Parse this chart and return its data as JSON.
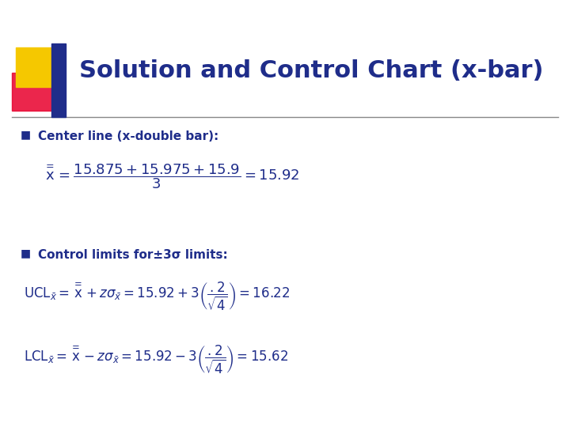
{
  "title": "Solution and Control Chart (x-bar)",
  "title_color": "#1F2D8A",
  "title_fontsize": 22,
  "bg_color": "#FFFFFF",
  "bullet_color": "#1F2D8A",
  "bullet1": "Center line (x-double bar):",
  "bullet2": "Control limits for±3σ limits:",
  "formula_color": "#1F2D8A",
  "deco_gold": "#F5C800",
  "deco_red": "#E8002D",
  "deco_blue": "#1F2D8A",
  "line_color": "#888888",
  "formula1": "$\\overset{=}{\\mathrm{x}} = \\dfrac{15.875 + 15.975 + 15.9}{3} = 15.92$",
  "formula_ucl": "$\\mathrm{UCL}_{\\bar{x}} = \\overset{=}{\\mathrm{x}} + z\\sigma_{\\bar{x}} = 15.92 + 3\\left(\\dfrac{.2}{\\sqrt{4}}\\right) = 16.22$",
  "formula_lcl": "$\\mathrm{LCL}_{\\bar{x}} = \\overset{=}{\\mathrm{x}} - z\\sigma_{\\bar{x}} = 15.92 - 3\\left(\\dfrac{.2}{\\sqrt{4}}\\right) = 15.62$"
}
